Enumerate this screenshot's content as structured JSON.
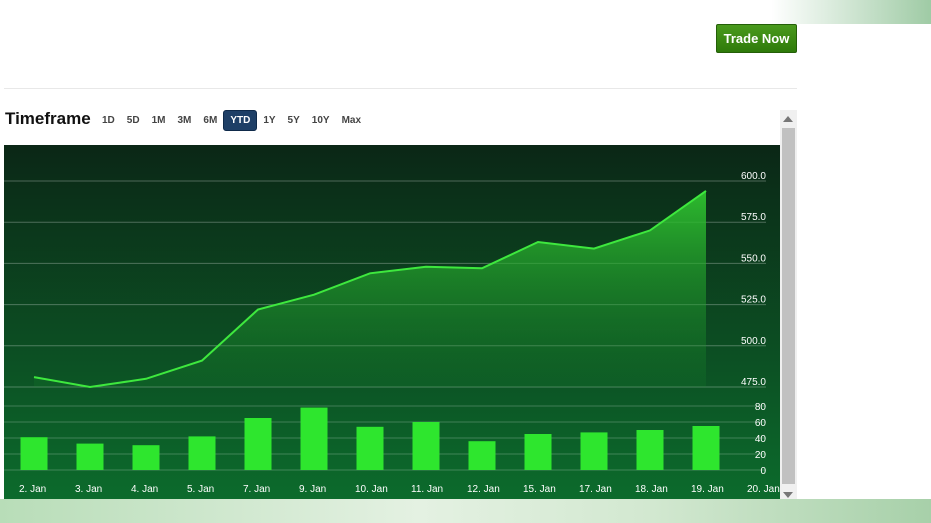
{
  "header": {
    "trade_button_label": "Trade Now"
  },
  "timeframe": {
    "title": "Timeframe",
    "options": [
      "1D",
      "5D",
      "1M",
      "3M",
      "6M",
      "YTD",
      "1Y",
      "5Y",
      "10Y",
      "Max"
    ],
    "selected": "YTD"
  },
  "colors": {
    "chart_bg_top": "#0b2716",
    "chart_bg_bottom": "#0c6b2c",
    "line": "#3ee83e",
    "bars": "#2ee62e",
    "trade_button": "#3a8a15",
    "selected_tab": "#1e3f66"
  },
  "chart_data": {
    "type": "line",
    "x": [
      "2. Jan",
      "3. Jan",
      "4. Jan",
      "5. Jan",
      "7. Jan",
      "9. Jan",
      "10. Jan",
      "11. Jan",
      "12. Jan",
      "15. Jan",
      "17. Jan",
      "18. Jan",
      "19. Jan",
      "20. Jan"
    ],
    "x_tick_labels": [
      "2. Jan",
      "3. Jan",
      "4. Jan",
      "5. Jan",
      "7. Jan",
      "9. Jan",
      "10. Jan",
      "11. Jan",
      "12. Jan",
      "15. Jan",
      "17. Jan",
      "18. Jan",
      "19. Jan",
      "20. Jan"
    ],
    "price": {
      "x": [
        "2. Jan",
        "3. Jan",
        "4. Jan",
        "5. Jan",
        "7. Jan",
        "9. Jan",
        "10. Jan",
        "11. Jan",
        "12. Jan",
        "15. Jan",
        "17. Jan",
        "18. Jan",
        "19. Jan"
      ],
      "values": [
        481,
        475,
        480,
        491,
        522,
        531,
        544,
        548,
        547,
        563,
        559,
        570,
        594
      ],
      "ylim": [
        475,
        600
      ],
      "ticks": [
        "475.0",
        "500.0",
        "525.0",
        "550.0",
        "575.0",
        "600.0"
      ],
      "tick_values": [
        475,
        500,
        525,
        550,
        575,
        600
      ]
    },
    "volume": {
      "type": "bar",
      "x": [
        "2. Jan",
        "3. Jan",
        "4. Jan",
        "5. Jan",
        "7. Jan",
        "9. Jan",
        "10. Jan",
        "11. Jan",
        "12. Jan",
        "15. Jan",
        "17. Jan",
        "18. Jan",
        "19. Jan"
      ],
      "values": [
        41,
        33,
        31,
        42,
        65,
        78,
        54,
        60,
        36,
        45,
        47,
        50,
        55
      ],
      "ylim": [
        0,
        80
      ],
      "ticks": [
        "0",
        "20",
        "40",
        "60",
        "80"
      ],
      "tick_values": [
        0,
        20,
        40,
        60,
        80
      ]
    },
    "grid": true
  }
}
